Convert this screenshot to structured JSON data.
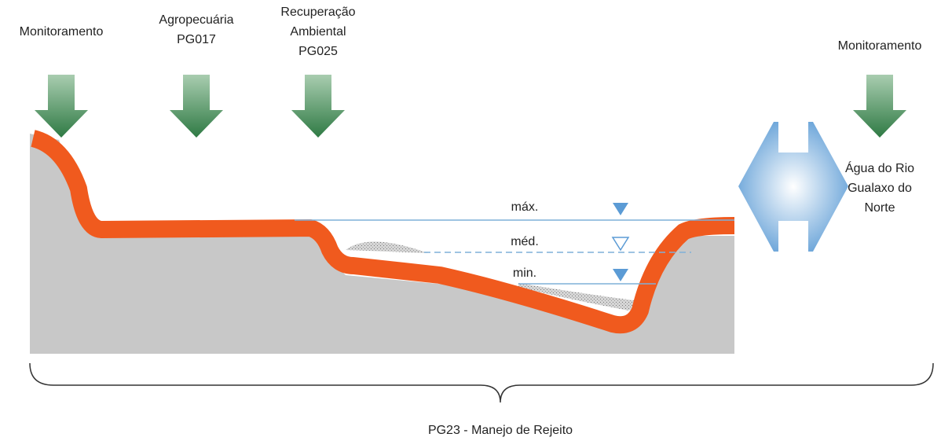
{
  "interventions": [
    {
      "label": [
        "Monitoramento"
      ]
    },
    {
      "label": [
        "Agropecuária",
        "PG017"
      ]
    },
    {
      "label": [
        "Recuperação",
        "Ambiental",
        "PG025"
      ]
    },
    {
      "label": [
        "Monitoramento"
      ]
    }
  ],
  "river": {
    "label": [
      "Água do Rio",
      "Gualaxo do",
      "Norte"
    ]
  },
  "levels": [
    "máx.",
    "méd.",
    "min."
  ],
  "footer": "PG23 - Manejo de Rejeito"
}
